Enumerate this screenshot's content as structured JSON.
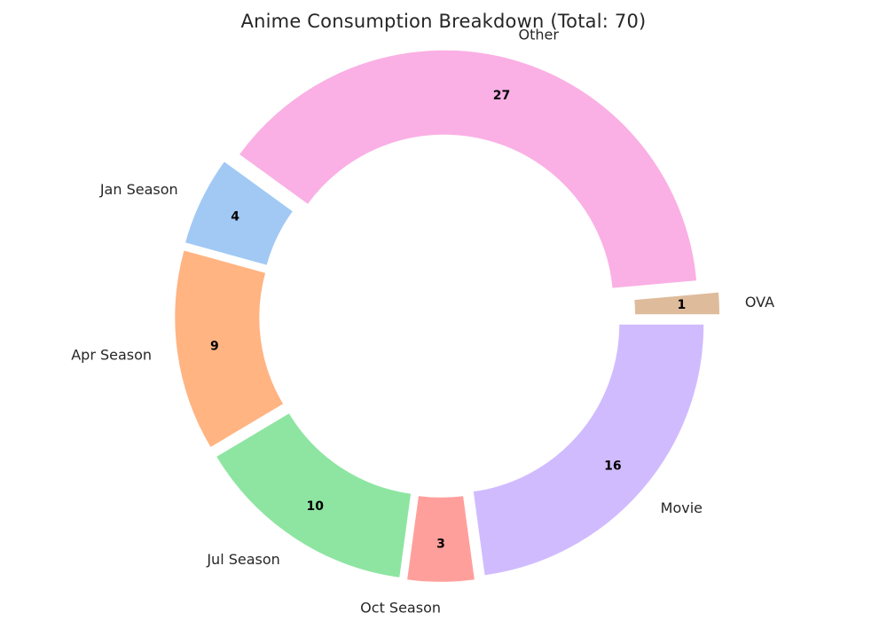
{
  "chart_data": {
    "type": "pie",
    "title": "Anime Consumption Breakdown (Total: 70)",
    "donut": true,
    "start_angle_deg": 0,
    "direction": "counterclockwise",
    "slices": [
      {
        "label": "OVA",
        "value": 1,
        "color": "#debb9b",
        "explode": 0.1
      },
      {
        "label": "Other",
        "value": 27,
        "color": "#fab0e4",
        "explode": 0.05
      },
      {
        "label": "Jan Season",
        "value": 4,
        "color": "#a1c9f4",
        "explode": 0.05
      },
      {
        "label": "Apr Season",
        "value": 9,
        "color": "#ffb482",
        "explode": 0.05
      },
      {
        "label": "Jul Season",
        "value": 10,
        "color": "#8de5a1",
        "explode": 0.05
      },
      {
        "label": "Oct Season",
        "value": 3,
        "color": "#ff9f9b",
        "explode": 0.05
      },
      {
        "label": "Movie",
        "value": 16,
        "color": "#d0bbff",
        "explode": 0.05
      }
    ]
  }
}
